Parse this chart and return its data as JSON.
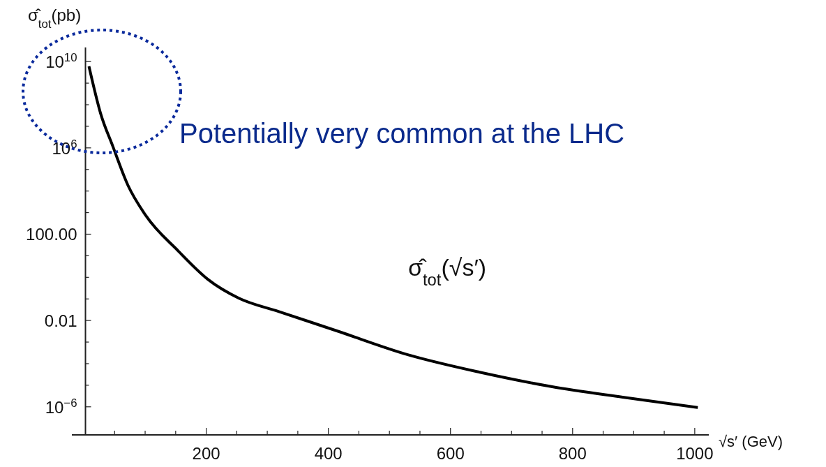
{
  "chart_data": {
    "type": "line",
    "log": "y",
    "grid": false,
    "marker": "none",
    "line_style": "solid",
    "ylabel": "σ̂$_{tot}$(pb)",
    "xlabel": "√s′ (GeV)",
    "xlim": [
      -20,
      1023
    ],
    "xticks": [
      {
        "value": 50,
        "label": null
      },
      {
        "value": 100,
        "label": null
      },
      {
        "value": 150,
        "label": null
      },
      200,
      {
        "value": 250,
        "label": null
      },
      {
        "value": 300,
        "label": null
      },
      {
        "value": 350,
        "label": null
      },
      400,
      {
        "value": 450,
        "label": null
      },
      {
        "value": 500,
        "label": null
      },
      {
        "value": 550,
        "label": null
      },
      600,
      {
        "value": 650,
        "label": null
      },
      {
        "value": 700,
        "label": null
      },
      {
        "value": 750,
        "label": null
      },
      800,
      {
        "value": 850,
        "label": null
      },
      {
        "value": 900,
        "label": null
      },
      {
        "value": 950,
        "label": null
      },
      1000
    ],
    "ylim": [
      5e-08,
      45000000000.0
    ],
    "yticks": [
      {
        "value": 1e-06,
        "label": "10$^{−6}$"
      },
      {
        "value": 1e-05,
        "label": null
      },
      {
        "value": 0.0001,
        "label": null
      },
      {
        "value": 0.001,
        "label": null
      },
      {
        "value": 0.01,
        "label": "0.01"
      },
      {
        "value": 0.1,
        "label": null
      },
      {
        "value": 1,
        "label": null
      },
      {
        "value": 10,
        "label": null
      },
      {
        "value": 100,
        "label": "100.00"
      },
      {
        "value": 1000,
        "label": null
      },
      {
        "value": 10000,
        "label": null
      },
      {
        "value": 100000,
        "label": null
      },
      {
        "value": 1000000.0,
        "label": "10$^{6}$"
      },
      {
        "value": 10000000.0,
        "label": null
      },
      {
        "value": 100000000.0,
        "label": null
      },
      {
        "value": 1000000000.0,
        "label": null
      },
      {
        "value": 10000000000.0,
        "label": "10$^{10}$"
      }
    ],
    "series": [
      {
        "color": "#000000",
        "x": [
          8,
          27,
          47,
          72,
          101,
          154,
          203,
          253,
          319,
          414,
          530,
          648,
          765,
          882,
          1005
        ],
        "values": [
          6000000000.0,
          40000000.0,
          1200000.0,
          18000.0,
          740,
          17,
          0.8,
          0.11,
          0.026,
          0.0033,
          0.00026,
          4e-05,
          8.7e-06,
          2.8e-06,
          9.3e-07
        ]
      }
    ],
    "annotations": [
      "σ̂$_{tot}$(√s′)",
      "Potentially very common at the LHC"
    ]
  }
}
